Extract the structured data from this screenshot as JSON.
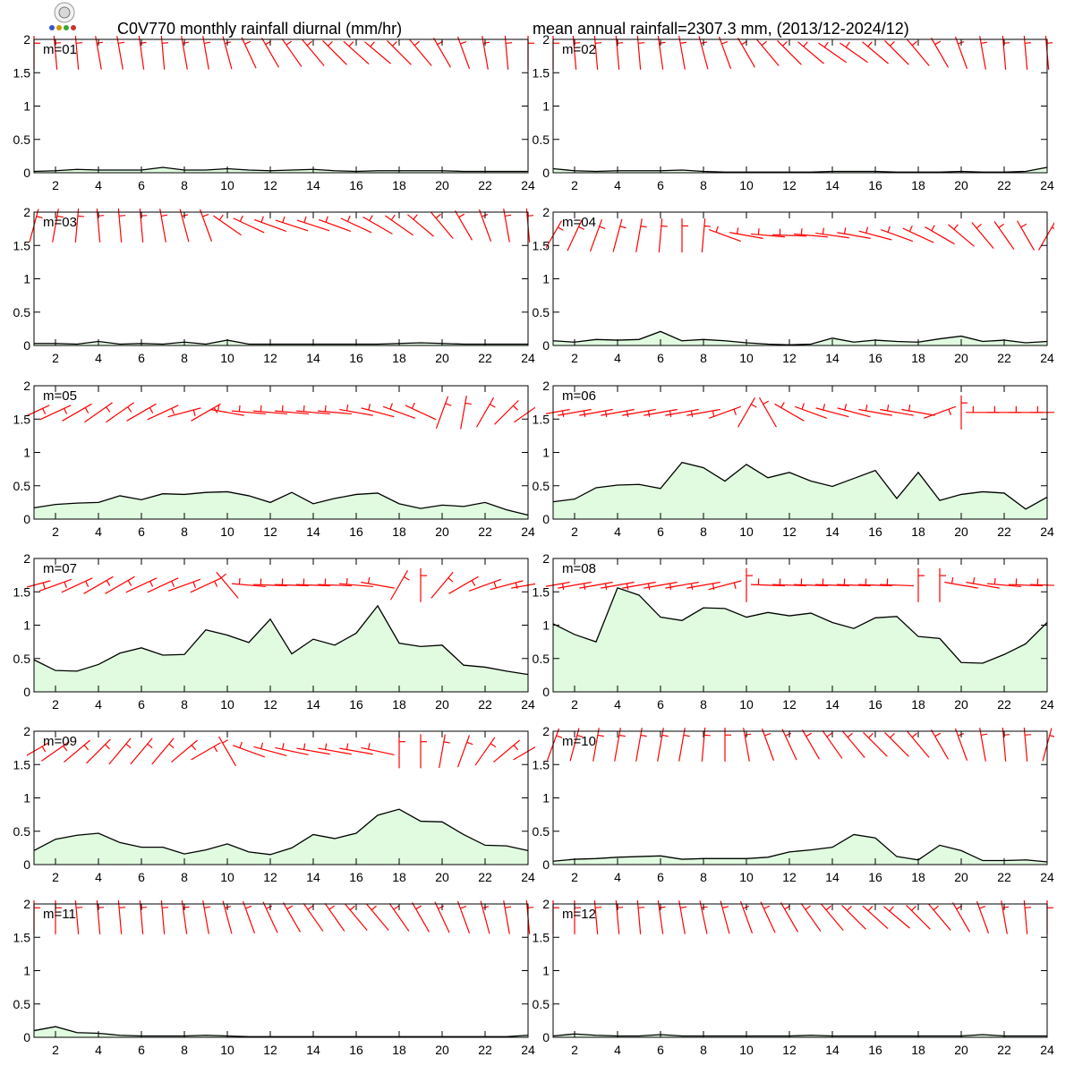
{
  "header": {
    "title": "C0V770 monthly rainfall diurnal (mm/hr)",
    "subtitle": "mean annual rainfall=2307.3 mm, (2013/12-2024/12)"
  },
  "colors": {
    "fill": "#e0fbe0",
    "line": "#000000",
    "barb": "#ff0000",
    "axes": "#000000"
  },
  "chart_data": {
    "type": "area",
    "x": [
      1,
      2,
      3,
      4,
      5,
      6,
      7,
      8,
      9,
      10,
      11,
      12,
      13,
      14,
      15,
      16,
      17,
      18,
      19,
      20,
      21,
      22,
      23,
      24
    ],
    "xticks": [
      2,
      4,
      6,
      8,
      10,
      12,
      14,
      16,
      18,
      20,
      22,
      24
    ],
    "yticks": [
      "0",
      "0.5",
      "1",
      "1.5",
      "2"
    ],
    "ylim": [
      0,
      2
    ],
    "xlim": [
      1,
      24
    ],
    "panels": [
      {
        "label": "m=01",
        "values": [
          0.02,
          0.03,
          0.05,
          0.04,
          0.04,
          0.04,
          0.08,
          0.04,
          0.04,
          0.06,
          0.04,
          0.03,
          0.04,
          0.05,
          0.03,
          0.02,
          0.03,
          0.03,
          0.03,
          0.03,
          0.02,
          0.02,
          0.02,
          0.02
        ]
      },
      {
        "label": "m=02",
        "values": [
          0.06,
          0.03,
          0.02,
          0.03,
          0.03,
          0.03,
          0.04,
          0.02,
          0.01,
          0.01,
          0.01,
          0.01,
          0.01,
          0.02,
          0.02,
          0.02,
          0.01,
          0.01,
          0.01,
          0.02,
          0.01,
          0.01,
          0.02,
          0.08
        ]
      },
      {
        "label": "m=03",
        "values": [
          0.03,
          0.03,
          0.02,
          0.06,
          0.02,
          0.03,
          0.02,
          0.05,
          0.02,
          0.08,
          0.02,
          0.02,
          0.02,
          0.02,
          0.02,
          0.02,
          0.02,
          0.03,
          0.04,
          0.03,
          0.02,
          0.02,
          0.02,
          0.02
        ]
      },
      {
        "label": "m=04",
        "values": [
          0.07,
          0.05,
          0.09,
          0.08,
          0.09,
          0.21,
          0.07,
          0.09,
          0.07,
          0.04,
          0.02,
          0.01,
          0.02,
          0.11,
          0.05,
          0.08,
          0.06,
          0.05,
          0.1,
          0.14,
          0.06,
          0.08,
          0.04,
          0.06
        ]
      },
      {
        "label": "m=05",
        "values": [
          0.17,
          0.22,
          0.24,
          0.25,
          0.35,
          0.29,
          0.38,
          0.37,
          0.4,
          0.41,
          0.35,
          0.25,
          0.4,
          0.23,
          0.31,
          0.37,
          0.39,
          0.23,
          0.16,
          0.21,
          0.19,
          0.25,
          0.14,
          0.06
        ]
      },
      {
        "label": "m=06",
        "values": [
          0.26,
          0.3,
          0.47,
          0.51,
          0.52,
          0.46,
          0.85,
          0.77,
          0.57,
          0.82,
          0.62,
          0.7,
          0.57,
          0.49,
          0.61,
          0.73,
          0.31,
          0.7,
          0.28,
          0.37,
          0.41,
          0.39,
          0.15,
          0.33
        ]
      },
      {
        "label": "m=07",
        "values": [
          0.48,
          0.32,
          0.31,
          0.41,
          0.58,
          0.66,
          0.55,
          0.56,
          0.93,
          0.85,
          0.74,
          1.09,
          0.57,
          0.79,
          0.7,
          0.88,
          1.29,
          0.73,
          0.68,
          0.7,
          0.4,
          0.37,
          0.31,
          0.26
        ]
      },
      {
        "label": "m=08",
        "values": [
          1.02,
          0.86,
          0.75,
          1.56,
          1.45,
          1.12,
          1.07,
          1.26,
          1.25,
          1.12,
          1.19,
          1.14,
          1.18,
          1.04,
          0.95,
          1.11,
          1.13,
          0.83,
          0.8,
          0.44,
          0.43,
          0.56,
          0.72,
          1.04
        ]
      },
      {
        "label": "m=09",
        "values": [
          0.21,
          0.38,
          0.44,
          0.47,
          0.33,
          0.26,
          0.26,
          0.16,
          0.22,
          0.31,
          0.19,
          0.15,
          0.25,
          0.45,
          0.39,
          0.47,
          0.74,
          0.83,
          0.65,
          0.64,
          0.45,
          0.29,
          0.28,
          0.21
        ]
      },
      {
        "label": "m=10",
        "values": [
          0.05,
          0.08,
          0.09,
          0.11,
          0.12,
          0.13,
          0.08,
          0.09,
          0.09,
          0.09,
          0.11,
          0.19,
          0.22,
          0.26,
          0.45,
          0.4,
          0.12,
          0.07,
          0.29,
          0.21,
          0.06,
          0.06,
          0.07,
          0.04
        ]
      },
      {
        "label": "m=11",
        "values": [
          0.1,
          0.16,
          0.07,
          0.06,
          0.03,
          0.02,
          0.02,
          0.02,
          0.03,
          0.02,
          0.01,
          0.01,
          0.01,
          0.01,
          0.01,
          0.01,
          0.01,
          0.01,
          0.01,
          0.01,
          0.01,
          0.01,
          0.01,
          0.03
        ]
      },
      {
        "label": "m=12",
        "values": [
          0.02,
          0.05,
          0.03,
          0.02,
          0.02,
          0.04,
          0.02,
          0.02,
          0.02,
          0.02,
          0.02,
          0.02,
          0.03,
          0.02,
          0.02,
          0.02,
          0.02,
          0.02,
          0.02,
          0.02,
          0.04,
          0.02,
          0.02,
          0.02
        ]
      }
    ],
    "wind_barbs": [
      {
        "panel": "m=01",
        "base_y": 1.8,
        "dirs": [
          0,
          5,
          5,
          10,
          10,
          8,
          5,
          10,
          10,
          15,
          25,
          30,
          35,
          40,
          45,
          48,
          50,
          45,
          40,
          30,
          20,
          10,
          5,
          0
        ]
      },
      {
        "panel": "m=02",
        "base_y": 1.8,
        "dirs": [
          0,
          5,
          5,
          5,
          5,
          8,
          10,
          15,
          20,
          30,
          40,
          45,
          50,
          55,
          55,
          50,
          45,
          40,
          30,
          20,
          10,
          5,
          5,
          5
        ]
      },
      {
        "panel": "m=03",
        "base_y": 1.8,
        "dirs": [
          -15,
          -10,
          -5,
          5,
          5,
          5,
          10,
          15,
          20,
          55,
          65,
          70,
          72,
          72,
          70,
          65,
          60,
          55,
          50,
          40,
          30,
          20,
          10,
          5
        ]
      },
      {
        "panel": "m=04",
        "base_y": 1.65,
        "dirs": [
          -30,
          -25,
          -20,
          -15,
          -10,
          -5,
          0,
          -5,
          70,
          80,
          85,
          88,
          85,
          82,
          80,
          75,
          70,
          65,
          60,
          50,
          40,
          35,
          30,
          -30
        ]
      },
      {
        "panel": "m=05",
        "base_y": 1.6,
        "dirs": [
          -65,
          -65,
          -60,
          -55,
          -55,
          -60,
          -65,
          -75,
          -60,
          80,
          85,
          85,
          85,
          85,
          85,
          80,
          75,
          70,
          65,
          -20,
          -10,
          -30,
          -45,
          -55
        ]
      },
      {
        "panel": "m=06",
        "base_y": 1.6,
        "dirs": [
          -80,
          -80,
          -80,
          -80,
          -80,
          -80,
          -80,
          -80,
          -70,
          -30,
          30,
          60,
          70,
          75,
          75,
          80,
          80,
          80,
          -70,
          0,
          90,
          90,
          90,
          90
        ]
      },
      {
        "panel": "m=07",
        "base_y": 1.6,
        "dirs": [
          -75,
          -70,
          -65,
          -60,
          -60,
          -65,
          -65,
          -70,
          -65,
          40,
          85,
          88,
          88,
          88,
          88,
          85,
          80,
          -30,
          0,
          -40,
          -60,
          -70,
          -75,
          -80
        ]
      },
      {
        "panel": "m=08",
        "base_y": 1.6,
        "dirs": [
          -80,
          -80,
          -80,
          -80,
          -80,
          -80,
          -80,
          -80,
          -75,
          0,
          88,
          88,
          88,
          88,
          88,
          88,
          88,
          0,
          0,
          80,
          80,
          85,
          88,
          88
        ]
      },
      {
        "panel": "m=09",
        "base_y": 1.7,
        "dirs": [
          -60,
          -55,
          -50,
          -45,
          -40,
          -40,
          -40,
          -50,
          -60,
          30,
          70,
          75,
          78,
          80,
          80,
          80,
          78,
          0,
          0,
          -10,
          -20,
          -35,
          -50,
          -60
        ]
      },
      {
        "panel": "m=10",
        "base_y": 1.8,
        "dirs": [
          -20,
          -15,
          -10,
          -10,
          -10,
          -10,
          -10,
          -5,
          0,
          10,
          20,
          25,
          30,
          35,
          40,
          45,
          45,
          40,
          30,
          20,
          10,
          5,
          5,
          -15
        ]
      },
      {
        "panel": "m=11",
        "base_y": 1.8,
        "dirs": [
          0,
          0,
          5,
          5,
          5,
          5,
          5,
          8,
          10,
          15,
          20,
          25,
          30,
          35,
          35,
          40,
          40,
          35,
          30,
          25,
          20,
          15,
          10,
          5
        ]
      },
      {
        "panel": "m=12",
        "base_y": 1.8,
        "dirs": [
          0,
          0,
          5,
          5,
          5,
          8,
          10,
          12,
          15,
          20,
          25,
          30,
          35,
          40,
          45,
          48,
          50,
          45,
          40,
          30,
          20,
          10,
          5,
          0
        ]
      }
    ]
  }
}
